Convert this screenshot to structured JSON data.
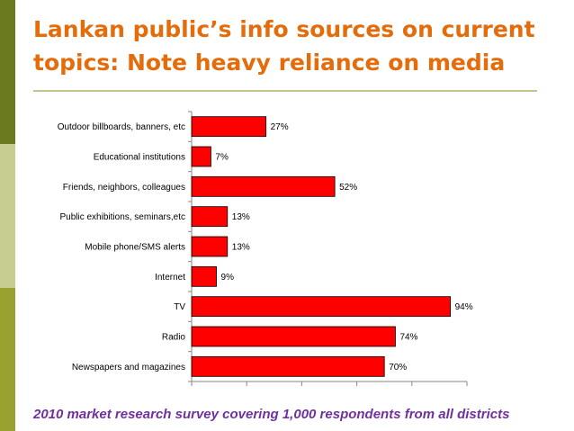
{
  "title": "Lankan public’s info sources on current topics: Note heavy reliance on media",
  "footnote": "2010 market research survey covering 1,000 respondents from all districts",
  "colors": {
    "title": "#e46c0a",
    "bar": "#ff0000",
    "footnote": "#7030a0"
  },
  "chart_data": {
    "type": "bar",
    "orientation": "horizontal",
    "categories": [
      "Outdoor billboards, banners, etc",
      "Educational institutions",
      "Friends, neighbors, colleagues",
      "Public exhibitions, seminars,etc",
      "Mobile phone/SMS alerts",
      "Internet",
      "TV",
      "Radio",
      "Newspapers and magazines"
    ],
    "values": [
      27,
      7,
      52,
      13,
      13,
      9,
      94,
      74,
      70
    ],
    "value_labels": [
      "27%",
      "7%",
      "52%",
      "13%",
      "13%",
      "9%",
      "94%",
      "74%",
      "70%"
    ],
    "xlim": [
      0,
      100
    ],
    "grid": false,
    "legend": "none"
  }
}
